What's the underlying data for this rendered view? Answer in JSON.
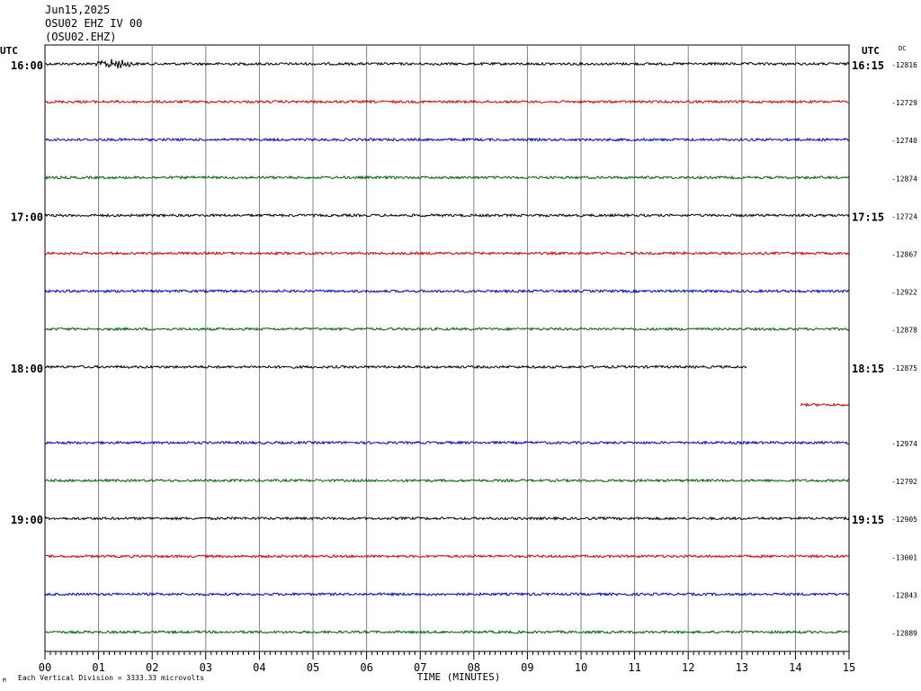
{
  "header": {
    "date": "Jun15,2025",
    "station": "OSU02 EHZ IV 00",
    "code": "(OSU02.EHZ)"
  },
  "labels": {
    "utc_left": "UTC",
    "utc_right": "UTC",
    "dc": "DC",
    "footer": "Each Vertical Division = 3333.33 microvolts",
    "footer_mark": "M"
  },
  "colors": {
    "trace_cycle": [
      "#000000",
      "#d40000",
      "#0000c8",
      "#006400"
    ],
    "grid": "#808080"
  },
  "chart_data": {
    "type": "line",
    "xlabel": "TIME (MINUTES)",
    "xlim": [
      0,
      15
    ],
    "x_ticks": [
      "00",
      "01",
      "02",
      "03",
      "04",
      "05",
      "06",
      "07",
      "08",
      "09",
      "10",
      "11",
      "12",
      "13",
      "14",
      "15"
    ],
    "minor_ticks_per_minute": 10,
    "grid": "vertical",
    "rows": [
      {
        "left": "16:00",
        "right": "16:15",
        "dc": "-12816",
        "segments": [
          [
            0,
            15
          ]
        ],
        "event_at": 1.3
      },
      {
        "left": "",
        "right": "",
        "dc": "-12729",
        "segments": [
          [
            0,
            15
          ]
        ]
      },
      {
        "left": "",
        "right": "",
        "dc": "-12740",
        "segments": [
          [
            0,
            15
          ]
        ]
      },
      {
        "left": "",
        "right": "",
        "dc": "-12874",
        "segments": [
          [
            0,
            15
          ]
        ]
      },
      {
        "left": "17:00",
        "right": "17:15",
        "dc": "-12724",
        "segments": [
          [
            0,
            15
          ]
        ]
      },
      {
        "left": "",
        "right": "",
        "dc": "-12867",
        "segments": [
          [
            0,
            15
          ]
        ]
      },
      {
        "left": "",
        "right": "",
        "dc": "-12922",
        "segments": [
          [
            0,
            15
          ]
        ]
      },
      {
        "left": "",
        "right": "",
        "dc": "-12878",
        "segments": [
          [
            0,
            15
          ]
        ]
      },
      {
        "left": "18:00",
        "right": "18:15",
        "dc": "-12875",
        "segments": [
          [
            0,
            13.1
          ]
        ]
      },
      {
        "left": "",
        "right": "",
        "dc": "",
        "segments": [
          [
            14.1,
            15
          ]
        ]
      },
      {
        "left": "",
        "right": "",
        "dc": "-12974",
        "segments": [
          [
            0,
            15
          ]
        ]
      },
      {
        "left": "",
        "right": "",
        "dc": "-12792",
        "segments": [
          [
            0,
            15
          ]
        ]
      },
      {
        "left": "19:00",
        "right": "19:15",
        "dc": "-12905",
        "segments": [
          [
            0,
            15
          ]
        ]
      },
      {
        "left": "",
        "right": "",
        "dc": "-13001",
        "segments": [
          [
            0,
            15
          ]
        ]
      },
      {
        "left": "",
        "right": "",
        "dc": "-12843",
        "segments": [
          [
            0,
            15
          ]
        ]
      },
      {
        "left": "",
        "right": "",
        "dc": "-12889",
        "segments": [
          [
            0,
            15
          ]
        ]
      }
    ]
  }
}
